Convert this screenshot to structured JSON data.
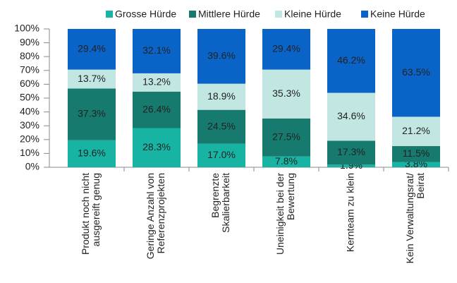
{
  "chart_data": {
    "type": "stacked_bar",
    "categories": [
      [
        "Produkt noch nicht",
        "ausgereift genug"
      ],
      [
        "Geringe Anzahl von",
        "Referenzprojekten"
      ],
      [
        "Begrenzte",
        "Skalierbarkeit"
      ],
      [
        "Uneinigkeit bei der",
        "Bewertung"
      ],
      [
        "Kernteam zu klein"
      ],
      [
        "Kein Verwaltungsrat/",
        "Beirat"
      ]
    ],
    "series": [
      {
        "name": "Grosse Hürde",
        "color": "#17b3a3",
        "values": [
          19.6,
          28.3,
          17.0,
          7.8,
          1.9,
          3.8
        ],
        "value_labels": [
          "19.6%",
          "28.3%",
          "17.0%",
          "7.8%",
          "1.9%",
          "3.8%"
        ]
      },
      {
        "name": "Mittlere Hürde",
        "color": "#167a6e",
        "values": [
          37.3,
          26.4,
          24.5,
          27.5,
          17.3,
          11.5
        ],
        "value_labels": [
          "37.3%",
          "26.4%",
          "24.5%",
          "27.5%",
          "17.3%",
          "11.5%"
        ]
      },
      {
        "name": "Kleine Hürde",
        "color": "#c2e7e3",
        "values": [
          13.7,
          13.2,
          18.9,
          35.3,
          34.6,
          21.2
        ],
        "value_labels": [
          "13.7%",
          "13.2%",
          "18.9%",
          "35.3%",
          "34.6%",
          "21.2%"
        ]
      },
      {
        "name": "Keine Hürde",
        "color": "#0a64c8",
        "values": [
          29.4,
          32.1,
          39.6,
          29.4,
          46.2,
          63.5
        ],
        "value_labels": [
          "29.4%",
          "32.1%",
          "39.6%",
          "29.4%",
          "46.2%",
          "63.5%"
        ]
      }
    ],
    "ylim": [
      0,
      100
    ],
    "yticks": [
      {
        "value": 0,
        "label": "0%"
      },
      {
        "value": 10,
        "label": "10%"
      },
      {
        "value": 20,
        "label": "20%"
      },
      {
        "value": 30,
        "label": "30%"
      },
      {
        "value": 40,
        "label": "40%"
      },
      {
        "value": 50,
        "label": "50%"
      },
      {
        "value": 60,
        "label": "60%"
      },
      {
        "value": 70,
        "label": "70%"
      },
      {
        "value": 80,
        "label": "80%"
      },
      {
        "value": 90,
        "label": "90%"
      },
      {
        "value": 100,
        "label": "100%"
      }
    ]
  }
}
